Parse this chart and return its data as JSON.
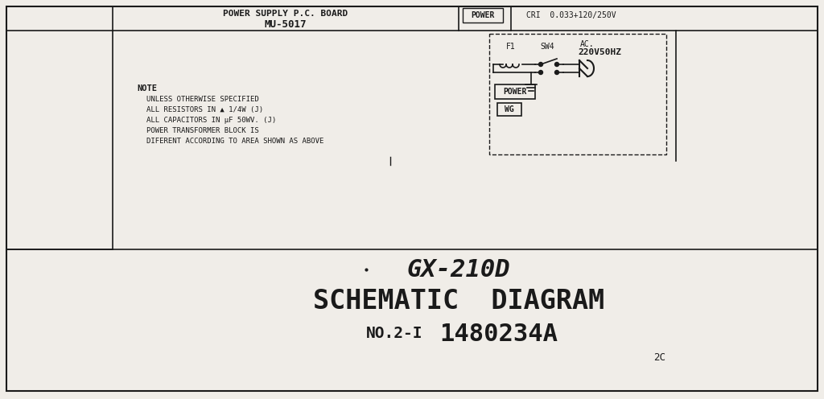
{
  "bg_color": "#f0ede8",
  "border_color": "#1a1a1a",
  "title_line1": "GX-210D",
  "title_line2": "SCHEMATIC  DIAGRAM",
  "title_line3_left": "NO.2-I",
  "title_line3_right": "1480234A",
  "title_line4": "2C",
  "note_title": "NOTE",
  "note_lines": [
    "UNLESS OTHERWISE SPECIFIED",
    "ALL RESISTORS IN ▲ 1/4W (J)",
    "ALL CAPACITORS IN μF 50WV. (J)",
    "POWER TRANSFORMER BLOCK IS",
    "DIFERENT ACCORDING TO AREA SHOWN AS ABOVE"
  ],
  "top_label1": "POWER SUPPLY P.C. BOARD",
  "top_label2": "MU-5017",
  "top_right_label1": "POWER",
  "top_right_label2": "CRI  0.033+120/250V",
  "circuit_label_f1": "F1",
  "circuit_label_sw4": "SW4",
  "circuit_label_ac": "AC.",
  "circuit_label_voltage": "220V50HZ",
  "circuit_label_power": "POWER",
  "circuit_label_wg": "WG",
  "text_color": "#1a1a1a",
  "line_color": "#1a1a1a"
}
